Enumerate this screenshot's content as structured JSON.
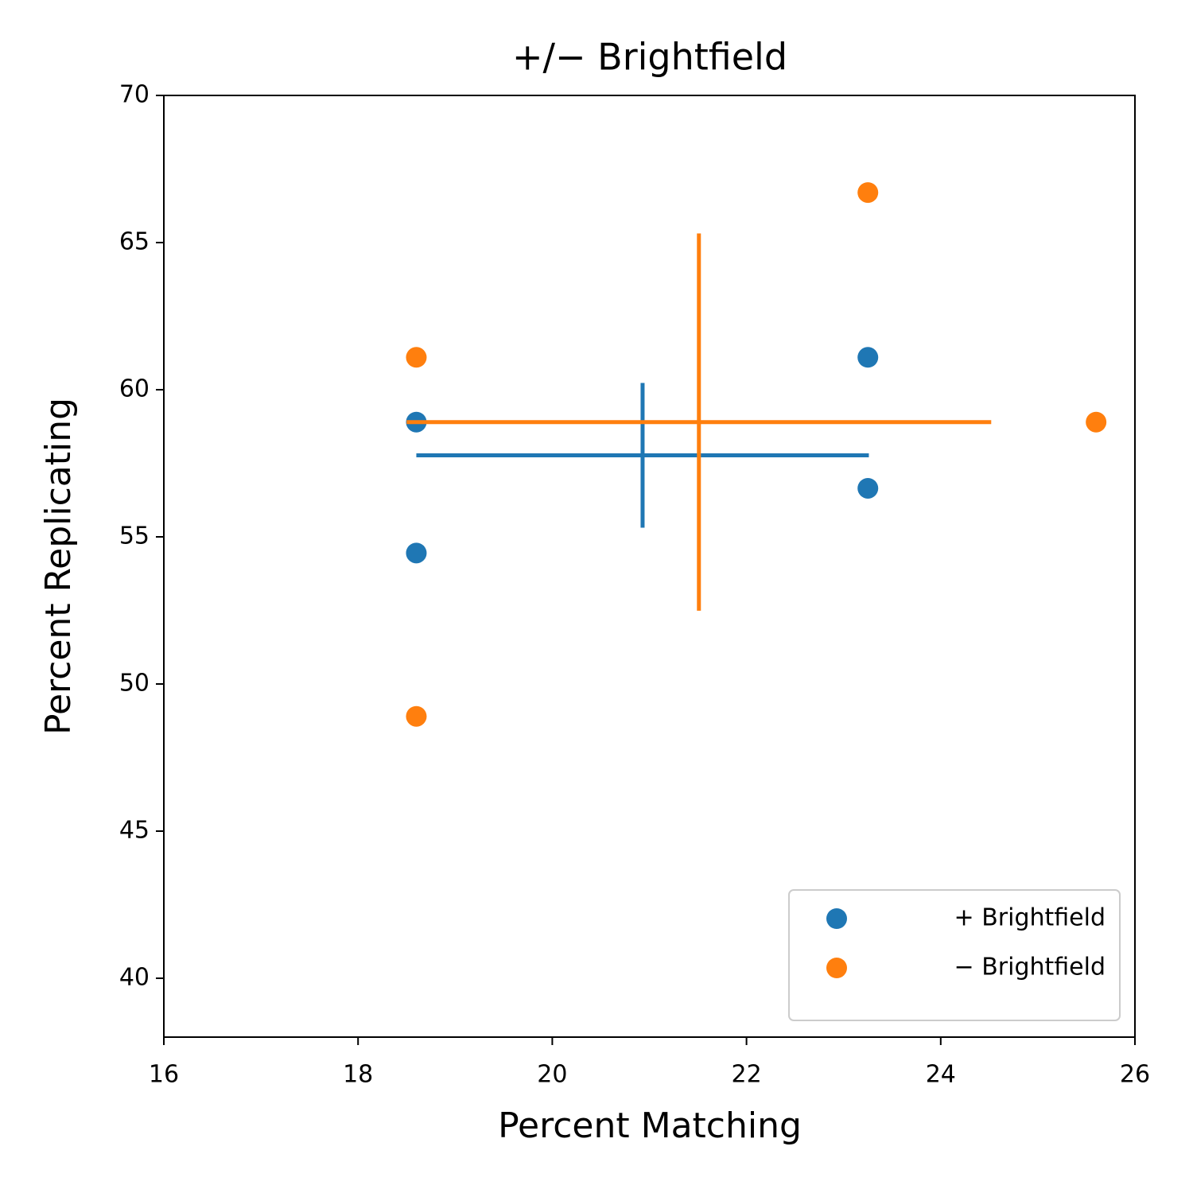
{
  "chart_data": {
    "type": "scatter",
    "title": "+/− Brightfield",
    "x_label": "Percent Matching",
    "y_label": "Percent Replicating",
    "xlim": [
      16,
      26
    ],
    "ylim": [
      38,
      70
    ],
    "xticks": [
      16,
      18,
      20,
      22,
      24,
      26
    ],
    "yticks": [
      40,
      45,
      50,
      55,
      60,
      65,
      70
    ],
    "legend": "lower right",
    "series": [
      {
        "name": "+ Brightfield",
        "color": "#1f77b4",
        "x": [
          18.6,
          18.6,
          23.25,
          23.25
        ],
        "y": [
          58.9,
          54.45,
          61.1,
          56.65
        ],
        "mean_x": 20.93,
        "mean_y": 57.77,
        "xerr": 2.33,
        "yerr": 2.46
      },
      {
        "name": "− Brightfield",
        "color": "#ff7f0e",
        "x": [
          18.6,
          18.6,
          23.25,
          25.6
        ],
        "y": [
          61.1,
          48.9,
          66.7,
          58.9
        ],
        "mean_x": 21.51,
        "mean_y": 58.9,
        "xerr": 3.01,
        "yerr": 6.41
      }
    ]
  }
}
